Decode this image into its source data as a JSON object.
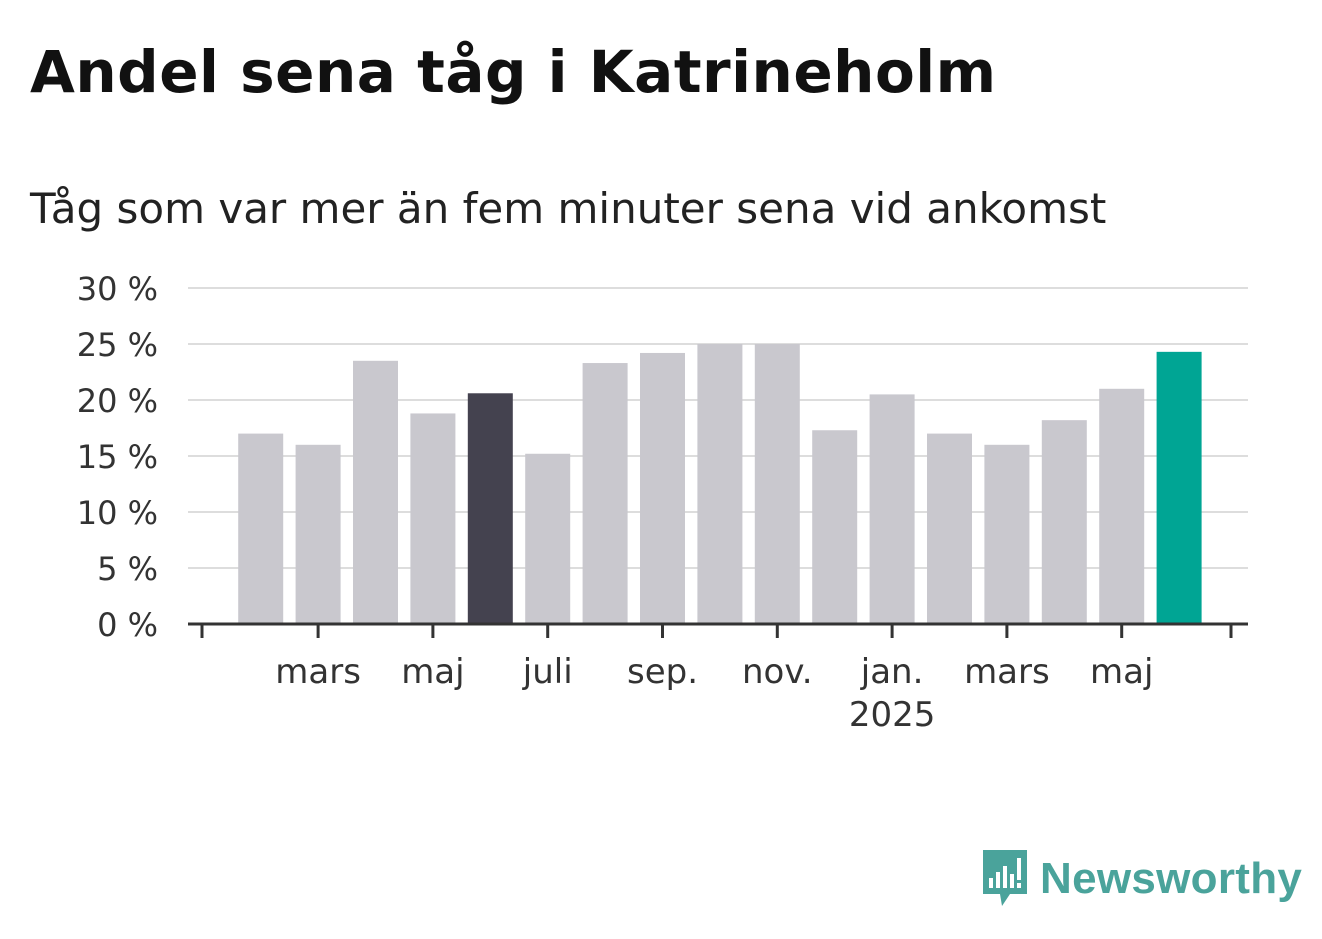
{
  "title": "Andel sena tåg i Katrineholm",
  "subtitle": "Tåg som var mer än fem minuter sena vid ankomst",
  "brand": {
    "name": "Newsworthy",
    "color": "#4aa39b",
    "icon": "bar-chart-bubble-icon"
  },
  "colors": {
    "bar": "#c9c8ce",
    "highlight_dark": "#44424f",
    "highlight_current": "#00a594",
    "grid": "#dddddd",
    "axis": "#333333"
  },
  "chart_data": {
    "type": "bar",
    "ylim": [
      0,
      30
    ],
    "yticks": [
      0,
      5,
      10,
      15,
      20,
      25,
      30
    ],
    "y_tick_labels": [
      "0 %",
      "5 %",
      "10 %",
      "15 %",
      "20 %",
      "25 %",
      "30 %"
    ],
    "grid": true,
    "legend": "none",
    "x_labels": [
      {
        "label": "mars",
        "year": "",
        "index": 1.5
      },
      {
        "label": "maj",
        "year": "",
        "index": 3.5
      },
      {
        "label": "juli",
        "year": "",
        "index": 5.5
      },
      {
        "label": "sep.",
        "year": "",
        "index": 7.5
      },
      {
        "label": "nov.",
        "year": "",
        "index": 9.5
      },
      {
        "label": "jan.",
        "year": "2025",
        "index": 11.5
      },
      {
        "label": "mars",
        "year": "",
        "index": 13.5
      },
      {
        "label": "maj",
        "year": "",
        "index": 15.5
      }
    ],
    "values": [
      17.0,
      16.0,
      23.5,
      18.8,
      20.6,
      15.2,
      23.3,
      24.2,
      25.0,
      25.0,
      17.3,
      20.5,
      17.0,
      16.0,
      18.2,
      21.0,
      24.3
    ],
    "highlight": {
      "4": "dark",
      "16": "current"
    }
  }
}
